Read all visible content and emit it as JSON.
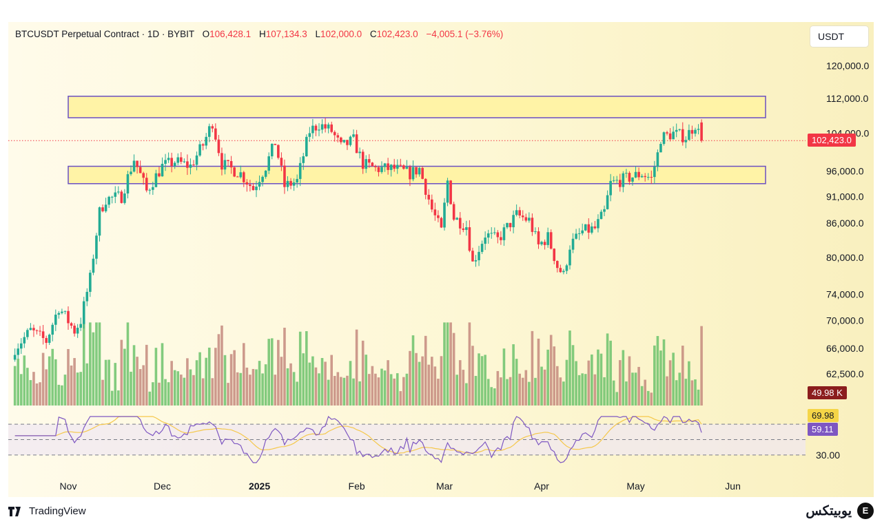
{
  "header": {
    "symbol": "BTCUSDT Perpetual Contract · 1D · BYBIT",
    "open_label": "O",
    "open": "106,428.1",
    "high_label": "H",
    "high": "107,134.3",
    "low_label": "L",
    "low": "102,000.0",
    "close_label": "C",
    "close": "102,423.0",
    "change": "−4,005.1 (−3.76%)"
  },
  "currency_button": "USDT",
  "tags": {
    "last_price": "102,423.0",
    "volume": "49.98 K",
    "rsi_ma": "69.98",
    "rsi": "59.11"
  },
  "footer": {
    "brand_left": "TradingView",
    "brand_right": "یوبیتکس",
    "brand_right_mark": "E"
  },
  "colors": {
    "up": "#22ab94",
    "down": "#f23645",
    "zone_border": "#6a4fc2",
    "zone_fill": "#fff3a6",
    "rsi_line": "#7e57c2",
    "rsi_ma": "#f5c84b",
    "volume_tag": "#8b1d1d",
    "rsi_ma_tag": "#f5d547",
    "rsi_tag": "#7e57c2"
  },
  "chart_data": {
    "type": "candlestick",
    "price_scale": "log",
    "y_axis_ticks": [
      120000,
      112000,
      104000,
      96000,
      91000,
      86000,
      80000,
      74000,
      70000,
      66000,
      62500
    ],
    "y_axis_tick_labels": [
      "120,000.0",
      "112,000.0",
      "104,000.0",
      "96,000.0",
      "91,000.0",
      "86,000.0",
      "80,000.0",
      "74,000.0",
      "70,000.0",
      "66,000.0",
      "62,500.0"
    ],
    "x_axis_labels": [
      "Nov",
      "Dec",
      "2025",
      "Feb",
      "Mar",
      "Apr",
      "May",
      "Jun"
    ],
    "x_axis_dates": [
      "2024-11-01",
      "2024-12-01",
      "2025-01-01",
      "2025-02-01",
      "2025-03-01",
      "2025-04-01",
      "2025-05-01",
      "2025-06-01"
    ],
    "bold_x_labels": [
      "2025"
    ],
    "last_price": 102423.0,
    "price_path": [
      [
        "2024-10-15",
        66000
      ],
      [
        "2024-10-20",
        68500
      ],
      [
        "2024-10-25",
        67000
      ],
      [
        "2024-10-29",
        72000
      ],
      [
        "2024-11-03",
        68500
      ],
      [
        "2024-11-05",
        70000
      ],
      [
        "2024-11-08",
        76500
      ],
      [
        "2024-11-11",
        88000
      ],
      [
        "2024-11-13",
        90500
      ],
      [
        "2024-11-18",
        91000
      ],
      [
        "2024-11-22",
        98500
      ],
      [
        "2024-11-26",
        92000
      ],
      [
        "2024-12-01",
        97000
      ],
      [
        "2024-12-05",
        98000
      ],
      [
        "2024-12-10",
        97000
      ],
      [
        "2024-12-14",
        101500
      ],
      [
        "2024-12-17",
        106500
      ],
      [
        "2024-12-20",
        97500
      ],
      [
        "2024-12-26",
        95500
      ],
      [
        "2024-12-30",
        92500
      ],
      [
        "2025-01-03",
        97000
      ],
      [
        "2025-01-06",
        102000
      ],
      [
        "2025-01-09",
        93000
      ],
      [
        "2025-01-13",
        94000
      ],
      [
        "2025-01-17",
        104500
      ],
      [
        "2025-01-20",
        106000
      ],
      [
        "2025-01-24",
        104500
      ],
      [
        "2025-01-27",
        101000
      ],
      [
        "2025-01-31",
        102500
      ],
      [
        "2025-02-03",
        97500
      ],
      [
        "2025-02-07",
        96500
      ],
      [
        "2025-02-13",
        96500
      ],
      [
        "2025-02-18",
        95500
      ],
      [
        "2025-02-21",
        96500
      ],
      [
        "2025-02-25",
        88500
      ],
      [
        "2025-02-28",
        84500
      ],
      [
        "2025-03-02",
        94000
      ],
      [
        "2025-03-04",
        87000
      ],
      [
        "2025-03-08",
        85500
      ],
      [
        "2025-03-10",
        79000
      ],
      [
        "2025-03-14",
        84000
      ],
      [
        "2025-03-18",
        83000
      ],
      [
        "2025-03-24",
        87500
      ],
      [
        "2025-03-28",
        86500
      ],
      [
        "2025-03-31",
        82000
      ],
      [
        "2025-04-03",
        83500
      ],
      [
        "2025-04-06",
        78500
      ],
      [
        "2025-04-08",
        77000
      ],
      [
        "2025-04-10",
        82000
      ],
      [
        "2025-04-14",
        84500
      ],
      [
        "2025-04-18",
        85000
      ],
      [
        "2025-04-21",
        88000
      ],
      [
        "2025-04-23",
        93500
      ],
      [
        "2025-04-28",
        94500
      ],
      [
        "2025-05-03",
        95500
      ],
      [
        "2025-05-06",
        94500
      ],
      [
        "2025-05-08",
        99500
      ],
      [
        "2025-05-09",
        103000
      ],
      [
        "2025-05-13",
        104000
      ],
      [
        "2025-05-17",
        103200
      ],
      [
        "2025-05-20",
        106000
      ],
      [
        "2025-05-22",
        102423
      ]
    ],
    "zones": [
      {
        "low": 107500,
        "high": 112500
      },
      {
        "low": 93500,
        "high": 97000
      }
    ],
    "volume_range": [
      0,
      130000
    ],
    "rsi": {
      "levels": [
        70,
        50,
        30
      ],
      "tick_labels": [
        "30.00"
      ],
      "value": 59.11,
      "ma_value": 69.98
    }
  }
}
